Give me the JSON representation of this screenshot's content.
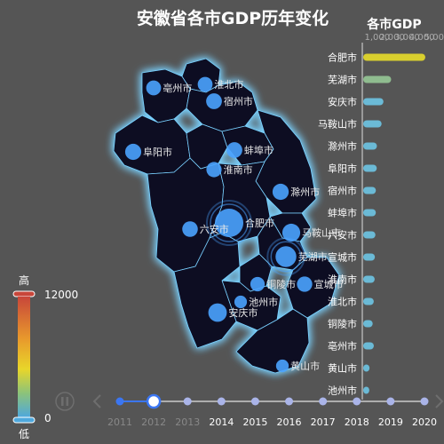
{
  "title": "安徽省各市GDP历年变化",
  "colors": {
    "background": "#555555",
    "map_fill": "#0b0a24",
    "map_glow": "#7ad2ff",
    "bar_top": "#d9cf2e",
    "bar_second": "#8fbc8f",
    "bar_default": "#6bbad6",
    "scatter": "#4aa3ff",
    "timeline": "#ffffff",
    "timeline_active": "#3b76f2"
  },
  "icons": {
    "play": "pause-icon",
    "prev": "chevron-left-icon",
    "next": "chevron-right-icon"
  },
  "visual_map": {
    "max_label": "12000",
    "min_label": "0",
    "high_text": "高",
    "low_text": "低"
  },
  "timeline": {
    "years": [
      "2011",
      "2012",
      "2013",
      "2014",
      "2015",
      "2016",
      "2017",
      "2018",
      "2019",
      "2020"
    ],
    "current": "2012"
  },
  "chart_data": [
    {
      "type": "scatter",
      "subtype": "geo-map",
      "region": "安徽省",
      "points": [
        {
          "name": "合肥市",
          "value": 4164
        },
        {
          "name": "芜湖市",
          "value": 1874
        },
        {
          "name": "安庆市",
          "value": 1357
        },
        {
          "name": "马鞍山市",
          "value": 1232
        },
        {
          "name": "滁州市",
          "value": 920
        },
        {
          "name": "阜阳市",
          "value": 910
        },
        {
          "name": "宿州市",
          "value": 850
        },
        {
          "name": "蚌埠市",
          "value": 847
        },
        {
          "name": "六安市",
          "value": 818
        },
        {
          "name": "宣城市",
          "value": 784
        },
        {
          "name": "淮南市",
          "value": 768
        },
        {
          "name": "亳州市",
          "value": 712
        },
        {
          "name": "淮北市",
          "value": 708
        },
        {
          "name": "铜陵市",
          "value": 636
        },
        {
          "name": "池州市",
          "value": 410
        },
        {
          "name": "黄山市",
          "value": 426
        }
      ]
    },
    {
      "type": "bar",
      "title": "各市GDP",
      "orientation": "horizontal",
      "categories": [
        "合肥市",
        "芜湖市",
        "安庆市",
        "马鞍山市",
        "滁州市",
        "阜阳市",
        "宿州市",
        "蚌埠市",
        "六安市",
        "宣城市",
        "淮南市",
        "淮北市",
        "铜陵市",
        "亳州市",
        "黄山市",
        "池州市"
      ],
      "values": [
        4164,
        1874,
        1357,
        1232,
        920,
        910,
        850,
        847,
        818,
        784,
        768,
        708,
        636,
        712,
        426,
        410
      ],
      "ticks": [
        "1,000",
        "2,000",
        "3,000",
        "4,000",
        "5,000"
      ],
      "xlim": [
        0,
        5000
      ]
    }
  ]
}
